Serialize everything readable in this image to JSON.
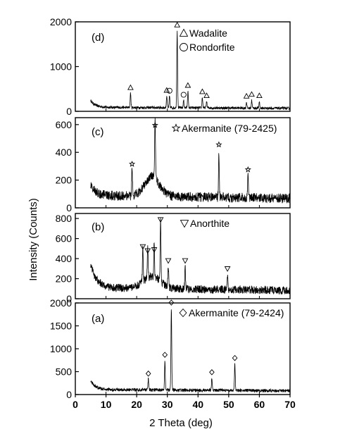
{
  "chart_data": [
    {
      "type": "line",
      "panel_label": "(d)",
      "ylim": [
        0,
        2000
      ],
      "yticks": [
        0,
        1000,
        2000
      ],
      "ytick_labels": [
        "0",
        "1000",
        "2000"
      ],
      "baseline": 90,
      "noise": 30,
      "low_angle_hump": {
        "height": 150,
        "width": 1.5
      },
      "amorphous_hump": null,
      "peaks": [
        {
          "x": 18.0,
          "y": 420,
          "marker": "triangle"
        },
        {
          "x": 29.8,
          "y": 360,
          "marker": "triangle"
        },
        {
          "x": 30.7,
          "y": 350,
          "marker": "circle"
        },
        {
          "x": 33.2,
          "y": 1820,
          "marker": "triangle"
        },
        {
          "x": 35.3,
          "y": 260,
          "marker": "circle"
        },
        {
          "x": 36.7,
          "y": 470,
          "marker": "triangle"
        },
        {
          "x": 41.4,
          "y": 330,
          "marker": "triangle"
        },
        {
          "x": 42.8,
          "y": 240,
          "marker": "triangle"
        },
        {
          "x": 55.8,
          "y": 230,
          "marker": "triangle"
        },
        {
          "x": 57.5,
          "y": 270,
          "marker": "triangle"
        },
        {
          "x": 60.0,
          "y": 240,
          "marker": "triangle"
        }
      ],
      "legend": [
        {
          "symbol": "triangle",
          "label": "Wadalite"
        },
        {
          "symbol": "circle",
          "label": "Rondorfite"
        }
      ]
    },
    {
      "type": "line",
      "panel_label": "(c)",
      "ylim": [
        0,
        650
      ],
      "yticks": [
        0,
        200,
        400,
        600
      ],
      "ytick_labels": [
        "0",
        "200",
        "400",
        "600"
      ],
      "baseline": 90,
      "noise": 35,
      "low_angle_hump": {
        "height": 80,
        "width": 1.5
      },
      "amorphous_hump": {
        "center": 25,
        "height": 140,
        "width": 3.5
      },
      "peaks": [
        {
          "x": 18.5,
          "y": 280,
          "marker": "star"
        },
        {
          "x": 26.0,
          "y": 560,
          "marker": "star"
        },
        {
          "x": 46.8,
          "y": 420,
          "marker": "star"
        },
        {
          "x": 56.3,
          "y": 240,
          "marker": "star"
        }
      ],
      "legend": [
        {
          "symbol": "star",
          "label": "Akermanite (79-2425)"
        }
      ]
    },
    {
      "type": "line",
      "panel_label": "(b)",
      "ylim": [
        0,
        850
      ],
      "yticks": [
        0,
        200,
        400,
        600,
        800
      ],
      "ytick_labels": [
        "0",
        "200",
        "400",
        "600",
        "800"
      ],
      "baseline": 110,
      "noise": 40,
      "low_angle_hump": {
        "height": 230,
        "width": 2.0
      },
      "amorphous_hump": {
        "center": 25,
        "height": 120,
        "width": 4.0
      },
      "peaks": [
        {
          "x": 22.0,
          "y": 470,
          "marker": "down-triangle"
        },
        {
          "x": 23.6,
          "y": 430,
          "marker": "down-triangle"
        },
        {
          "x": 25.7,
          "y": 440,
          "marker": "down-triangle"
        },
        {
          "x": 27.8,
          "y": 740,
          "marker": "down-triangle"
        },
        {
          "x": 30.3,
          "y": 330,
          "marker": "down-triangle"
        },
        {
          "x": 35.8,
          "y": 330,
          "marker": "down-triangle"
        },
        {
          "x": 49.6,
          "y": 250,
          "marker": "down-triangle"
        }
      ],
      "legend": [
        {
          "symbol": "down-triangle",
          "label": "Anorthite"
        }
      ]
    },
    {
      "type": "line",
      "panel_label": "(a)",
      "ylim": [
        0,
        2000
      ],
      "yticks": [
        0,
        500,
        1000,
        1500,
        2000
      ],
      "ytick_labels": [
        "0",
        "500",
        "1000",
        "1500",
        "2000"
      ],
      "baseline": 110,
      "noise": 35,
      "low_angle_hump": {
        "height": 200,
        "width": 1.5
      },
      "amorphous_hump": null,
      "peaks": [
        {
          "x": 23.8,
          "y": 350,
          "marker": "diamond"
        },
        {
          "x": 29.2,
          "y": 760,
          "marker": "diamond"
        },
        {
          "x": 31.3,
          "y": 1900,
          "marker": "diamond"
        },
        {
          "x": 44.5,
          "y": 380,
          "marker": "diamond"
        },
        {
          "x": 52.0,
          "y": 690,
          "marker": "diamond"
        }
      ],
      "legend": [
        {
          "symbol": "diamond",
          "label": "Akermanite (79-2424)"
        }
      ]
    }
  ],
  "x_axis": {
    "xlabel": "2 Theta (deg)",
    "xlim": [
      0,
      70
    ],
    "data_start": 5,
    "ticks": [
      0,
      10,
      20,
      30,
      40,
      50,
      60,
      70
    ],
    "tick_labels": [
      "0",
      "10",
      "20",
      "30",
      "40",
      "50",
      "60",
      "70"
    ]
  },
  "y_axis_label": "Intensity (Counts)"
}
